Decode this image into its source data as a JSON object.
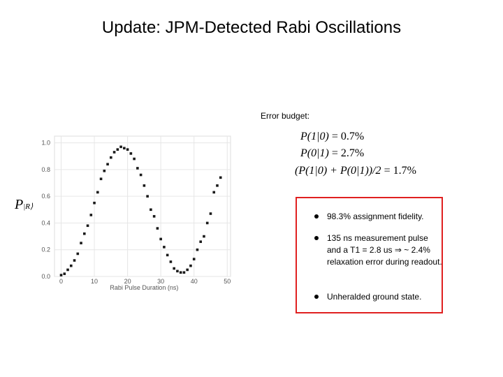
{
  "slide": {
    "title": "Update: JPM-Detected Rabi Oscillations",
    "error_budget_label": "Error budget:"
  },
  "equations": {
    "line1_lhs": "P(1|0)",
    "line1_rhs": " = 0.7%",
    "line2_lhs": "P(0|1)",
    "line2_rhs": " = 2.7%",
    "line3_lhs": "(P(1|0) + P(0|1))/2",
    "line3_rhs": " = 1.7%"
  },
  "bullets": [
    "98.3% assignment fidelity.",
    "135 ns measurement pulse and a T1 = 2.8 us ⇒ ~ 2.4% relaxation error during readout.",
    "Unheralded ground state."
  ],
  "y_side_label": {
    "main": "P",
    "subscript": "|R⟩"
  },
  "chart_data": {
    "type": "scatter",
    "title": "",
    "xlabel": "Rabi Pulse Duration (ns)",
    "ylabel": "",
    "xlim": [
      -2,
      51
    ],
    "ylim": [
      0.0,
      1.05
    ],
    "xticks": [
      0,
      10,
      20,
      30,
      40,
      50
    ],
    "yticks": [
      0.0,
      0.2,
      0.4,
      0.6,
      0.8,
      1.0
    ],
    "ytick_labels": [
      "0.0",
      "0.2",
      "0.4",
      "0.6",
      "0.8",
      "1.0"
    ],
    "grid": true,
    "marker_color": "#1a1a1a",
    "x": [
      0,
      1,
      2,
      3,
      4,
      5,
      6,
      7,
      8,
      9,
      10,
      11,
      12,
      13,
      14,
      15,
      16,
      17,
      18,
      19,
      20,
      21,
      22,
      23,
      24,
      25,
      26,
      27,
      28,
      29,
      30,
      31,
      32,
      33,
      34,
      35,
      36,
      37,
      38,
      39,
      40,
      41,
      42,
      43,
      44,
      45,
      46,
      47,
      48
    ],
    "y": [
      0.01,
      0.02,
      0.05,
      0.08,
      0.12,
      0.17,
      0.25,
      0.32,
      0.38,
      0.46,
      0.55,
      0.63,
      0.73,
      0.79,
      0.84,
      0.89,
      0.93,
      0.95,
      0.97,
      0.96,
      0.95,
      0.92,
      0.88,
      0.81,
      0.76,
      0.68,
      0.6,
      0.5,
      0.45,
      0.36,
      0.28,
      0.22,
      0.16,
      0.11,
      0.06,
      0.04,
      0.03,
      0.03,
      0.05,
      0.08,
      0.13,
      0.2,
      0.26,
      0.3,
      0.4,
      0.47,
      0.63,
      0.68,
      0.74
    ]
  }
}
